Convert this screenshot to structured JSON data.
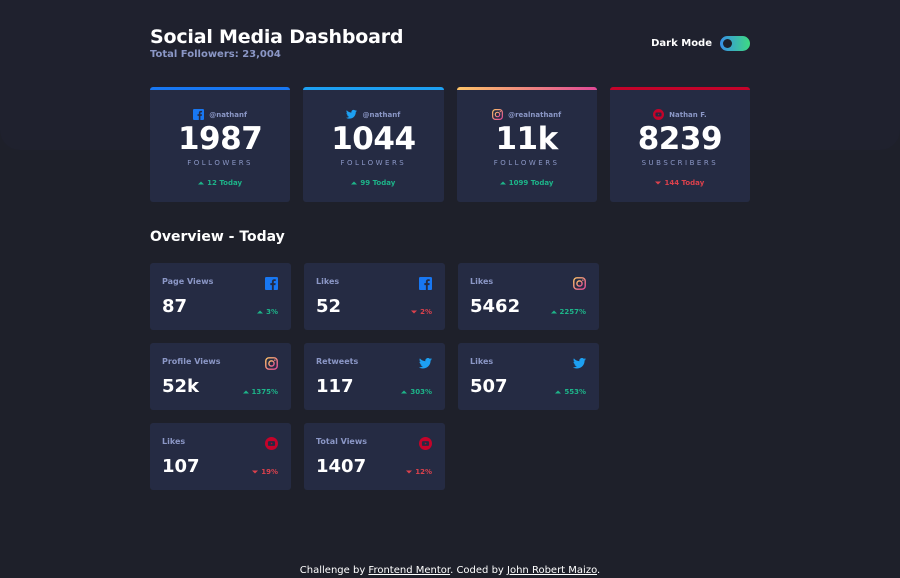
{
  "header": {
    "title": "Social Media Dashboard",
    "subtitle": "Total Followers: 23,004",
    "toggle_label": "Dark Mode"
  },
  "colors": {
    "facebook": "#1877f2",
    "twitter": "#1da0f2",
    "instagram_start": "#fdc468",
    "instagram_end": "#df4996",
    "youtube": "#c4032a",
    "up": "#1db489",
    "down": "#dc414c"
  },
  "followers": [
    {
      "network": "facebook",
      "icon": "facebook-icon",
      "handle": "@nathanf",
      "count": "1987",
      "unit": "FOLLOWERS",
      "change": "12 Today",
      "direction": "up"
    },
    {
      "network": "twitter",
      "icon": "twitter-icon",
      "handle": "@nathanf",
      "count": "1044",
      "unit": "FOLLOWERS",
      "change": "99 Today",
      "direction": "up"
    },
    {
      "network": "instagram",
      "icon": "instagram-icon",
      "handle": "@realnathanf",
      "count": "11k",
      "unit": "FOLLOWERS",
      "change": "1099 Today",
      "direction": "up"
    },
    {
      "network": "youtube",
      "icon": "youtube-icon",
      "handle": "Nathan F.",
      "count": "8239",
      "unit": "SUBSCRIBERS",
      "change": "144 Today",
      "direction": "down"
    }
  ],
  "overview": {
    "title": "Overview - Today",
    "cards": [
      {
        "label": "Page Views",
        "network": "facebook",
        "value": "87",
        "change": "3%",
        "direction": "up"
      },
      {
        "label": "Likes",
        "network": "facebook",
        "value": "52",
        "change": "2%",
        "direction": "down"
      },
      {
        "label": "Likes",
        "network": "instagram",
        "value": "5462",
        "change": "2257%",
        "direction": "up"
      },
      {
        "label": "Profile Views",
        "network": "instagram",
        "value": "52k",
        "change": "1375%",
        "direction": "up"
      },
      {
        "label": "Retweets",
        "network": "twitter",
        "value": "117",
        "change": "303%",
        "direction": "up"
      },
      {
        "label": "Likes",
        "network": "twitter",
        "value": "507",
        "change": "553%",
        "direction": "up"
      },
      {
        "label": "Likes",
        "network": "youtube",
        "value": "107",
        "change": "19%",
        "direction": "down"
      },
      {
        "label": "Total Views",
        "network": "youtube",
        "value": "1407",
        "change": "12%",
        "direction": "down"
      }
    ]
  },
  "footer": {
    "prefix": "Challenge by ",
    "link1": "Frontend Mentor",
    "middle": ". Coded by ",
    "link2": "John Robert Maizo",
    "suffix": "."
  }
}
